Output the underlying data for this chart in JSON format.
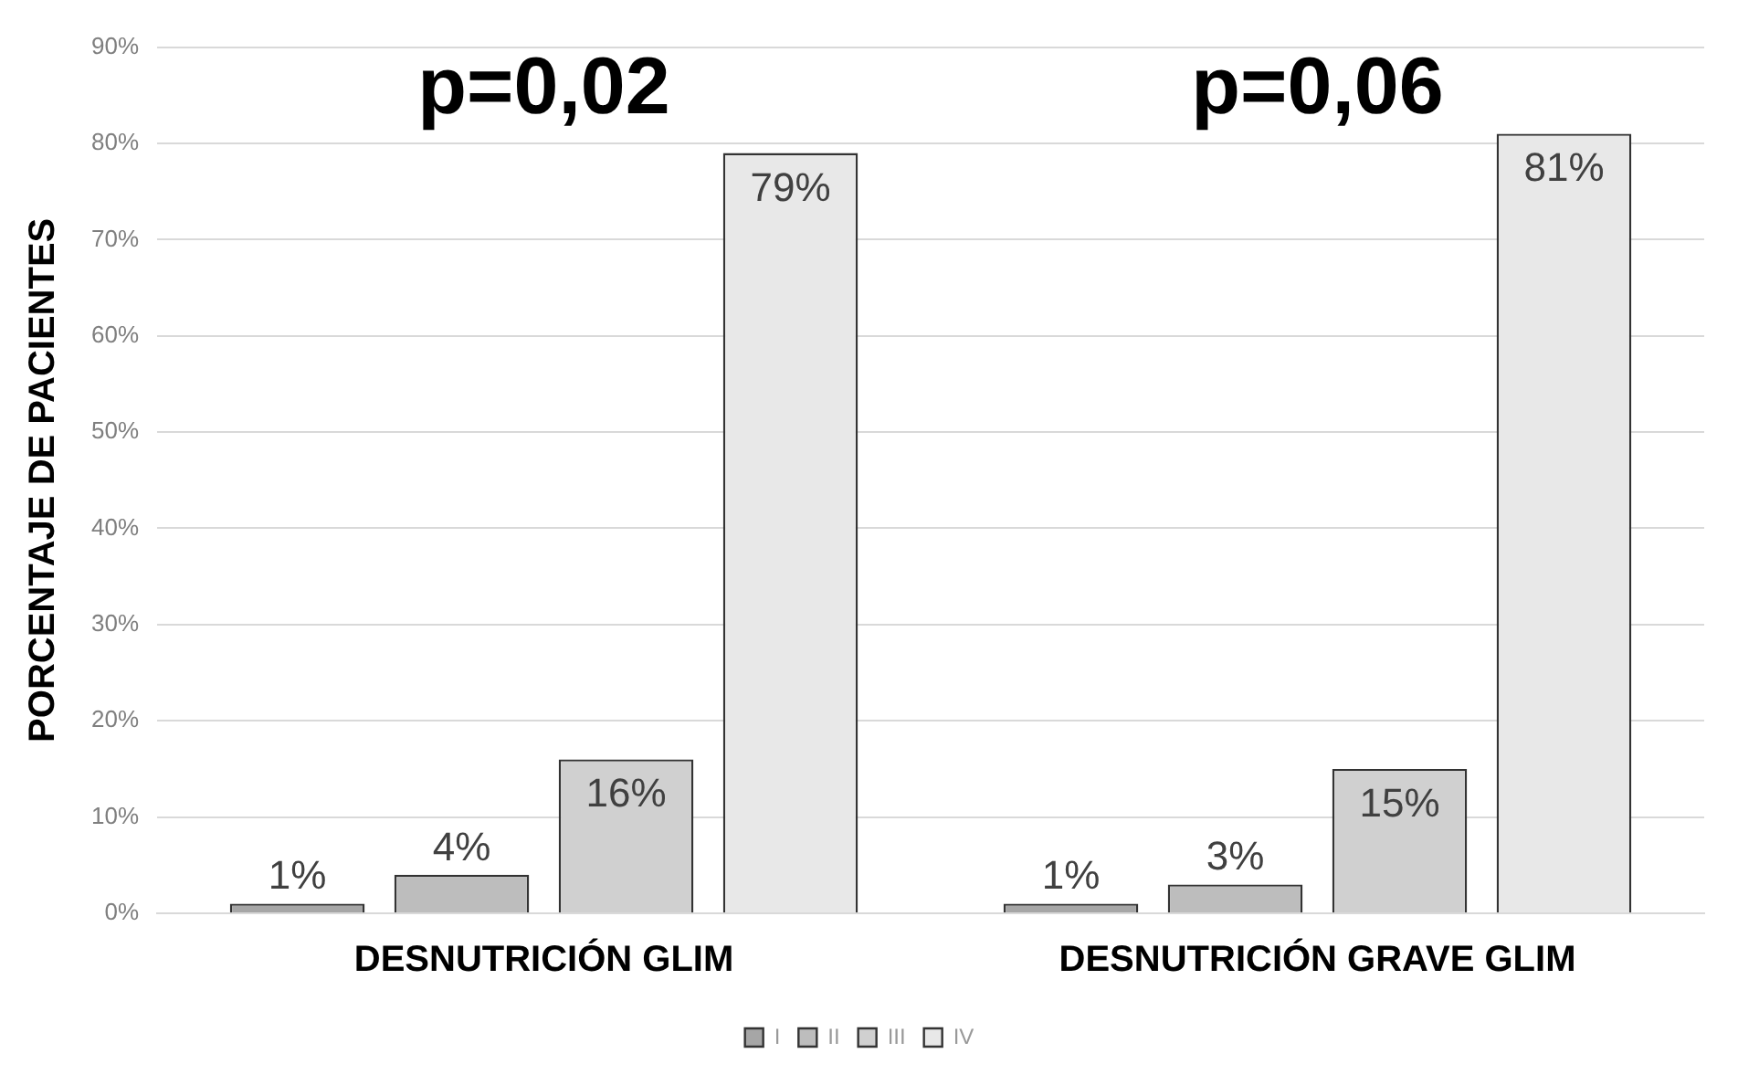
{
  "chart_data": {
    "type": "bar",
    "ylabel": "PORCENTAJE DE PACIENTES",
    "categories": [
      "DESNUTRICIÓN GLIM",
      "DESNUTRICIÓN GRAVE GLIM"
    ],
    "series": [
      {
        "name": "I",
        "color": "#a6a6a6",
        "values": [
          1,
          1
        ],
        "value_labels": [
          "1%",
          "1%"
        ]
      },
      {
        "name": "II",
        "color": "#bdbdbd",
        "values": [
          4,
          3
        ],
        "value_labels": [
          "4%",
          "3%"
        ]
      },
      {
        "name": "III",
        "color": "#d0d0d0",
        "values": [
          16,
          15
        ],
        "value_labels": [
          "16%",
          "15%"
        ]
      },
      {
        "name": "IV",
        "color": "#e8e8e8",
        "values": [
          79,
          81
        ],
        "value_labels": [
          "79%",
          "81%"
        ]
      }
    ],
    "ylim": [
      0,
      90
    ],
    "yticks": [
      {
        "value": 0,
        "label": "0%"
      },
      {
        "value": 10,
        "label": "10%"
      },
      {
        "value": 20,
        "label": "20%"
      },
      {
        "value": 30,
        "label": "30%"
      },
      {
        "value": 40,
        "label": "40%"
      },
      {
        "value": 50,
        "label": "50%"
      },
      {
        "value": 60,
        "label": "60%"
      },
      {
        "value": 70,
        "label": "70%"
      },
      {
        "value": 80,
        "label": "80%"
      },
      {
        "value": 90,
        "label": "90%"
      }
    ],
    "annotations": [
      "p=0,02",
      "p=0,06"
    ],
    "grid": "y",
    "legend": "bottom"
  }
}
